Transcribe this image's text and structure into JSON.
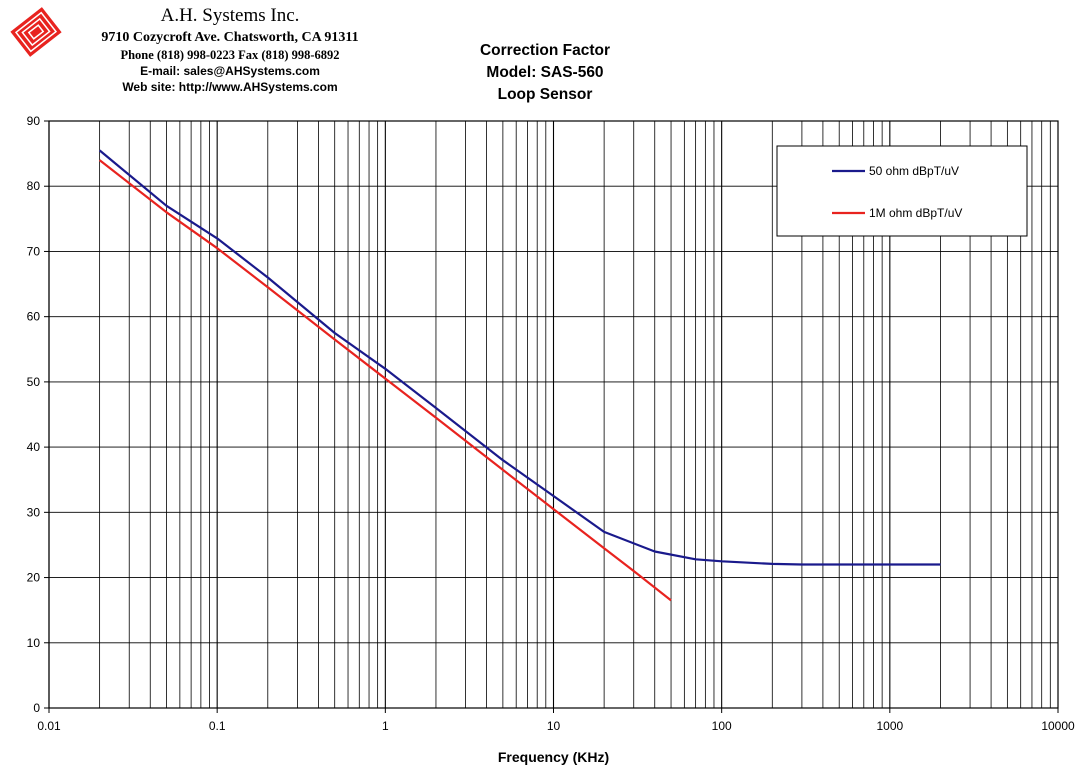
{
  "header": {
    "company_name": "A.H. Systems Inc.",
    "address": "9710 Cozycroft Ave. Chatsworth, CA 91311",
    "phone": "Phone (818) 998-0223 Fax (818) 998-6892",
    "email": "E-mail: sales@AHSystems.com",
    "website": "Web site: http://www.AHSystems.com",
    "logo_icon": "ahs-logo-icon"
  },
  "chart_data": {
    "type": "line",
    "title": [
      "Correction Factor",
      "Model: SAS-560",
      "Loop Sensor"
    ],
    "xlabel": "Frequency (KHz)",
    "ylabel": "",
    "xscale": "log",
    "xlim": [
      0.01,
      10000
    ],
    "ylim": [
      0,
      90
    ],
    "x_ticks": [
      "0.01",
      "0.1",
      "1",
      "10",
      "100",
      "1000",
      "10000"
    ],
    "y_ticks": [
      "0",
      "10",
      "20",
      "30",
      "40",
      "50",
      "60",
      "70",
      "80",
      "90"
    ],
    "grid": true,
    "legend_position": "top-right",
    "series": [
      {
        "name": "50 ohm dBpT/uV",
        "color": "#1a1a8c",
        "points": [
          [
            0.02,
            85.5
          ],
          [
            0.05,
            77
          ],
          [
            0.1,
            72
          ],
          [
            0.2,
            66
          ],
          [
            0.5,
            57.5
          ],
          [
            1,
            52
          ],
          [
            2,
            46
          ],
          [
            5,
            38
          ],
          [
            10,
            32.5
          ],
          [
            20,
            27
          ],
          [
            40,
            24
          ],
          [
            70,
            22.8
          ],
          [
            100,
            22.5
          ],
          [
            200,
            22.1
          ],
          [
            300,
            22
          ],
          [
            500,
            22
          ],
          [
            1000,
            22
          ],
          [
            2000,
            22
          ]
        ]
      },
      {
        "name": "1M ohm dBpT/uV",
        "color": "#e8231f",
        "points": [
          [
            0.02,
            84
          ],
          [
            0.05,
            76
          ],
          [
            0.1,
            70.5
          ],
          [
            0.2,
            64.5
          ],
          [
            0.5,
            56.5
          ],
          [
            1,
            50.5
          ],
          [
            2,
            44.5
          ],
          [
            5,
            36.5
          ],
          [
            10,
            30.5
          ],
          [
            20,
            24.5
          ],
          [
            30,
            21
          ],
          [
            50,
            16.5
          ]
        ]
      }
    ]
  }
}
